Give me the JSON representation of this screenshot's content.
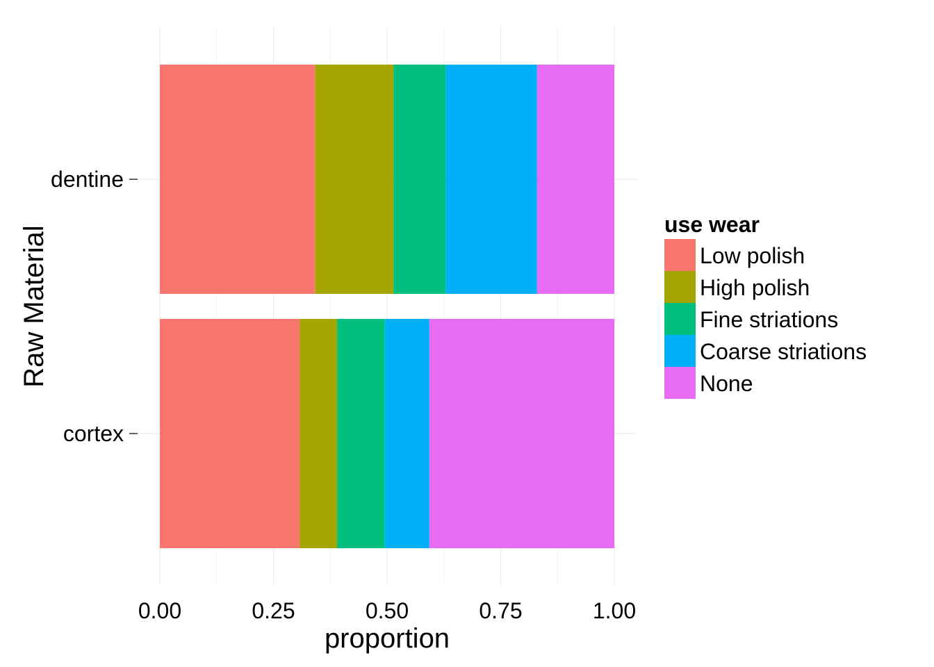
{
  "chart_data": {
    "type": "bar",
    "orientation": "horizontal",
    "stacked": true,
    "title": "",
    "xlabel": "proportion",
    "ylabel": "Raw Material",
    "xlim": [
      0,
      1
    ],
    "x_ticks": [
      "0.00",
      "0.25",
      "0.50",
      "0.75",
      "1.00"
    ],
    "categories": [
      "dentine",
      "cortex"
    ],
    "legend": {
      "title": "use wear",
      "position": "right"
    },
    "grid": true,
    "series": [
      {
        "name": "Low polish",
        "color": "#F8766D",
        "values": [
          0.342,
          0.308
        ]
      },
      {
        "name": "High polish",
        "color": "#A3A500",
        "values": [
          0.172,
          0.082
        ]
      },
      {
        "name": "Fine striations",
        "color": "#00BF7D",
        "values": [
          0.115,
          0.105
        ]
      },
      {
        "name": "Coarse striations",
        "color": "#00B0F6",
        "values": [
          0.201,
          0.098
        ]
      },
      {
        "name": "None",
        "color": "#E76BF3",
        "values": [
          0.17,
          0.407
        ]
      }
    ]
  }
}
